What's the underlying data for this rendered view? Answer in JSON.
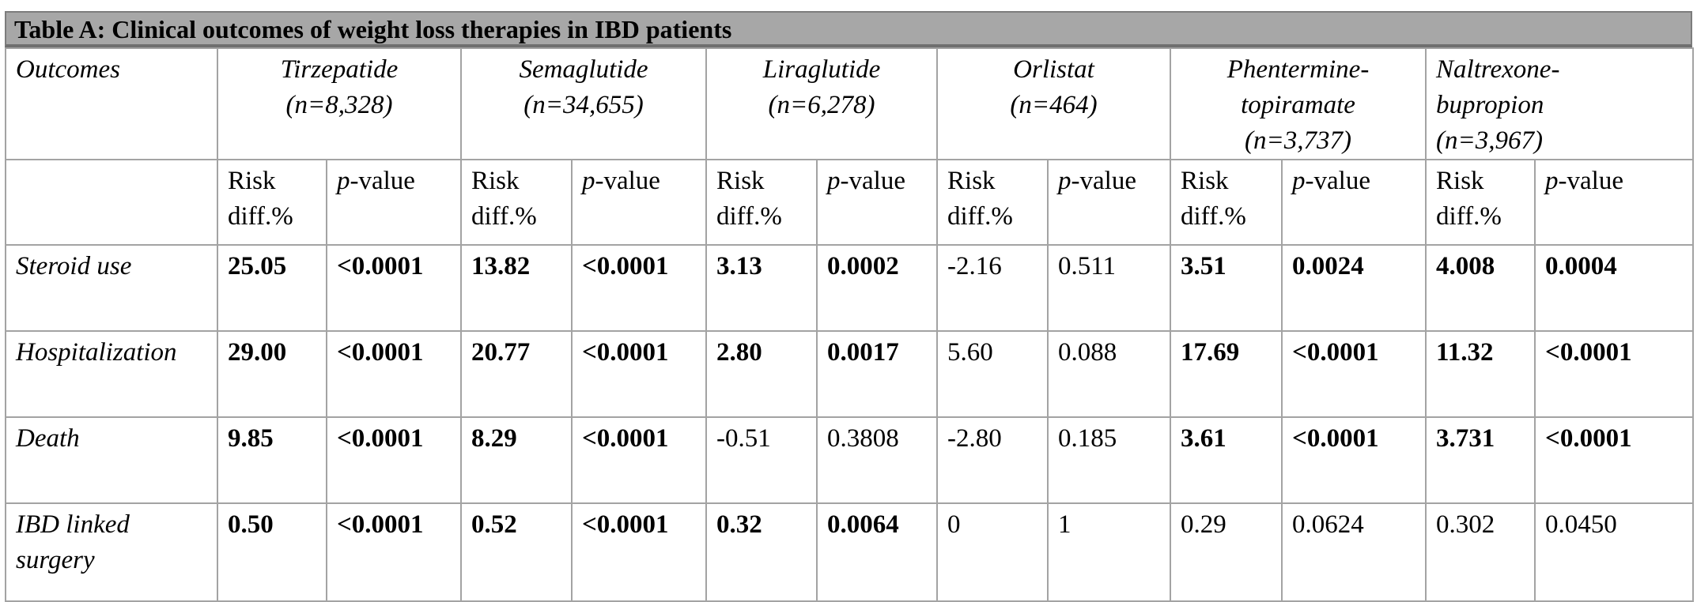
{
  "title": "Table A: Clinical outcomes of weight loss therapies in IBD patients",
  "header": {
    "outcomes_label": "Outcomes",
    "drugs": [
      {
        "line1": "Tirzepatide",
        "line2": "(n=8,328)"
      },
      {
        "line1": "Semaglutide",
        "line2": "(n=34,655)"
      },
      {
        "line1": "Liraglutide",
        "line2": "(n=6,278)"
      },
      {
        "line1": "Orlistat",
        "line2": "(n=464)"
      },
      {
        "line1": "Phentermine-",
        "line2": "topiramate",
        "line3": "(n=3,737)"
      },
      {
        "line1": "Naltrexone-",
        "line2": "bupropion",
        "line3": "(n=3,967)"
      }
    ]
  },
  "subheader": {
    "risk_line1": "Risk",
    "risk_line2": "diff.%",
    "p_prefix": "p",
    "p_suffix": "-value"
  },
  "rows": [
    {
      "outcome_line1": "Steroid use",
      "outcome_line2": "",
      "cells": [
        {
          "v": "25.05",
          "bold": true
        },
        {
          "v": "<0.0001",
          "bold": true
        },
        {
          "v": "13.82",
          "bold": true
        },
        {
          "v": "<0.0001",
          "bold": true
        },
        {
          "v": "3.13",
          "bold": true
        },
        {
          "v": "0.0002",
          "bold": true
        },
        {
          "v": "-2.16",
          "bold": false
        },
        {
          "v": "0.511",
          "bold": false
        },
        {
          "v": "3.51",
          "bold": true
        },
        {
          "v": "0.0024",
          "bold": true
        },
        {
          "v": "4.008",
          "bold": true
        },
        {
          "v": "0.0004",
          "bold": true
        }
      ]
    },
    {
      "outcome_line1": "Hospitalization",
      "outcome_line2": "",
      "cells": [
        {
          "v": "29.00",
          "bold": true
        },
        {
          "v": "<0.0001",
          "bold": true
        },
        {
          "v": "20.77",
          "bold": true
        },
        {
          "v": "<0.0001",
          "bold": true
        },
        {
          "v": "2.80",
          "bold": true
        },
        {
          "v": "0.0017",
          "bold": true
        },
        {
          "v": "5.60",
          "bold": false
        },
        {
          "v": "0.088",
          "bold": false
        },
        {
          "v": "17.69",
          "bold": true
        },
        {
          "v": "<0.0001",
          "bold": true
        },
        {
          "v": "11.32",
          "bold": true
        },
        {
          "v": "<0.0001",
          "bold": true
        }
      ]
    },
    {
      "outcome_line1": "Death",
      "outcome_line2": "",
      "cells": [
        {
          "v": "9.85",
          "bold": true
        },
        {
          "v": "<0.0001",
          "bold": true
        },
        {
          "v": "8.29",
          "bold": true
        },
        {
          "v": "<0.0001",
          "bold": true
        },
        {
          "v": "-0.51",
          "bold": false
        },
        {
          "v": "0.3808",
          "bold": false
        },
        {
          "v": "-2.80",
          "bold": false
        },
        {
          "v": "0.185",
          "bold": false
        },
        {
          "v": "3.61",
          "bold": true
        },
        {
          "v": "<0.0001",
          "bold": true
        },
        {
          "v": "3.731",
          "bold": true
        },
        {
          "v": "<0.0001",
          "bold": true
        }
      ]
    },
    {
      "outcome_line1": "IBD linked",
      "outcome_line2": "surgery",
      "cells": [
        {
          "v": "0.50",
          "bold": true
        },
        {
          "v": "<0.0001",
          "bold": true
        },
        {
          "v": "0.52",
          "bold": true
        },
        {
          "v": "<0.0001",
          "bold": true
        },
        {
          "v": "0.32",
          "bold": true
        },
        {
          "v": "0.0064",
          "bold": true
        },
        {
          "v": "0",
          "bold": false
        },
        {
          "v": "1",
          "bold": false
        },
        {
          "v": "0.29",
          "bold": false
        },
        {
          "v": "0.0624",
          "bold": false
        },
        {
          "v": "0.302",
          "bold": false
        },
        {
          "v": "0.0450",
          "bold": false
        }
      ]
    }
  ]
}
